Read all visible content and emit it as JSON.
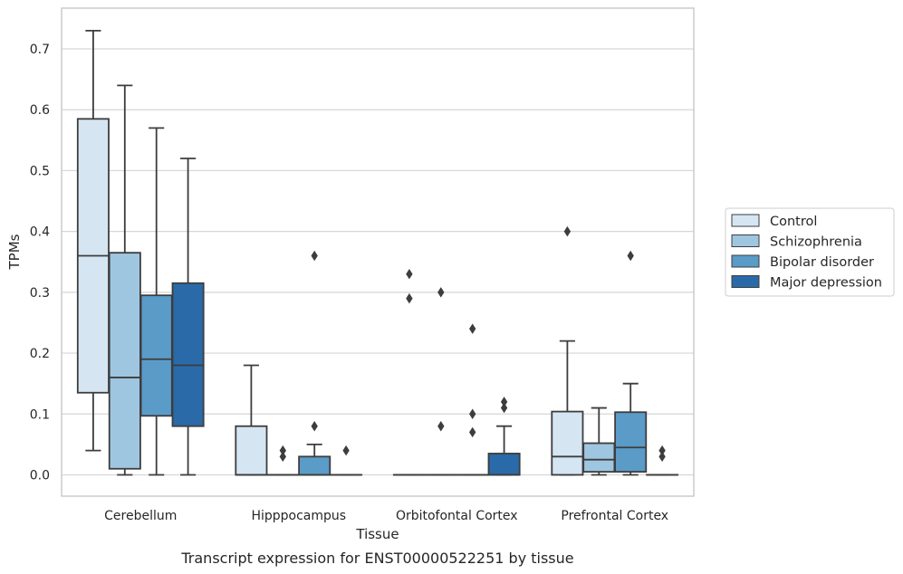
{
  "chart_data": {
    "type": "boxplot",
    "title": "Transcript expression for ENST00000522251 by tissue",
    "xlabel": "Tissue",
    "ylabel": "TPMs",
    "ylim": [
      -0.035,
      0.767
    ],
    "yticks": [
      0.0,
      0.1,
      0.2,
      0.3,
      0.4,
      0.5,
      0.6,
      0.7
    ],
    "ytick_labels": [
      "0.0",
      "0.1",
      "0.2",
      "0.3",
      "0.4",
      "0.5",
      "0.6",
      "0.7"
    ],
    "grid": "horizontal",
    "legend_position": "right",
    "categories": [
      "Cerebellum",
      "Hipppocampus",
      "Orbitofontal Cortex",
      "Prefrontal Cortex"
    ],
    "series": [
      {
        "name": "Control",
        "color": "#d6e5f2",
        "boxes": [
          {
            "whislo": 0.04,
            "q1": 0.135,
            "med": 0.36,
            "q3": 0.585,
            "whishi": 0.73,
            "fliers": []
          },
          {
            "whislo": 0.0,
            "q1": 0.0,
            "med": 0.0,
            "q3": 0.08,
            "whishi": 0.18,
            "fliers": []
          },
          {
            "whislo": 0.0,
            "q1": 0.0,
            "med": 0.0,
            "q3": 0.0,
            "whishi": 0.0,
            "fliers": [
              0.33,
              0.29
            ]
          },
          {
            "whislo": 0.0,
            "q1": 0.0,
            "med": 0.03,
            "q3": 0.104,
            "whishi": 0.22,
            "fliers": [
              0.4
            ]
          }
        ]
      },
      {
        "name": "Schizophrenia",
        "color": "#9fc6e0",
        "boxes": [
          {
            "whislo": 0.0,
            "q1": 0.01,
            "med": 0.16,
            "q3": 0.365,
            "whishi": 0.64,
            "fliers": []
          },
          {
            "whislo": 0.0,
            "q1": 0.0,
            "med": 0.0,
            "q3": 0.0,
            "whishi": 0.0,
            "fliers": [
              0.04,
              0.03
            ]
          },
          {
            "whislo": 0.0,
            "q1": 0.0,
            "med": 0.0,
            "q3": 0.0,
            "whishi": 0.0,
            "fliers": [
              0.3,
              0.08
            ]
          },
          {
            "whislo": 0.0,
            "q1": 0.005,
            "med": 0.025,
            "q3": 0.052,
            "whishi": 0.11,
            "fliers": []
          }
        ]
      },
      {
        "name": "Bipolar disorder",
        "color": "#5a9bc8",
        "boxes": [
          {
            "whislo": 0.0,
            "q1": 0.097,
            "med": 0.19,
            "q3": 0.295,
            "whishi": 0.57,
            "fliers": []
          },
          {
            "whislo": 0.0,
            "q1": 0.0,
            "med": 0.0,
            "q3": 0.03,
            "whishi": 0.05,
            "fliers": [
              0.36,
              0.08
            ]
          },
          {
            "whislo": 0.0,
            "q1": 0.0,
            "med": 0.0,
            "q3": 0.0,
            "whishi": 0.0,
            "fliers": [
              0.24,
              0.1,
              0.07
            ]
          },
          {
            "whislo": 0.0,
            "q1": 0.005,
            "med": 0.045,
            "q3": 0.103,
            "whishi": 0.15,
            "fliers": [
              0.36
            ]
          }
        ]
      },
      {
        "name": "Major depression",
        "color": "#2a6aa8",
        "boxes": [
          {
            "whislo": 0.0,
            "q1": 0.08,
            "med": 0.18,
            "q3": 0.315,
            "whishi": 0.52,
            "fliers": []
          },
          {
            "whislo": 0.0,
            "q1": 0.0,
            "med": 0.0,
            "q3": 0.0,
            "whishi": 0.0,
            "fliers": [
              0.04
            ]
          },
          {
            "whislo": 0.0,
            "q1": 0.0,
            "med": 0.0,
            "q3": 0.035,
            "whishi": 0.08,
            "fliers": [
              0.12,
              0.11
            ]
          },
          {
            "whislo": 0.0,
            "q1": 0.0,
            "med": 0.0,
            "q3": 0.0,
            "whishi": 0.0,
            "fliers": [
              0.04,
              0.03
            ]
          }
        ]
      }
    ]
  }
}
